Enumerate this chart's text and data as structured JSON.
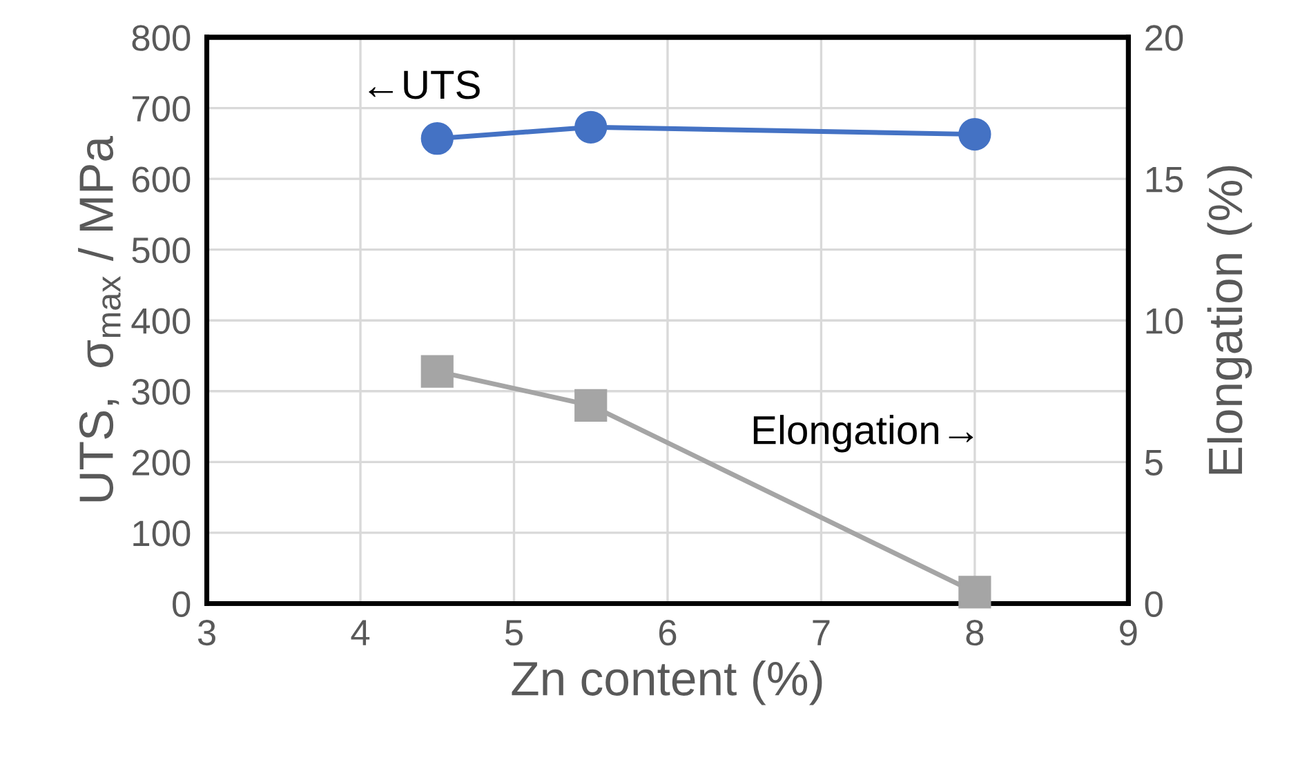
{
  "chart_data": {
    "type": "line",
    "xlabel": "Zn content (%)",
    "ylabel": "UTS,  σ$_{max}$ / MPa",
    "y2label": "Elongation (%)",
    "x": [
      4.5,
      5.5,
      8
    ],
    "series": [
      {
        "color": "#4472c4",
        "marker": "circle",
        "values": [
          657,
          673,
          663
        ]
      },
      {
        "color": "#a5a5a5",
        "marker": "square",
        "axis": "y2",
        "values": [
          8.2,
          7.0,
          0.4
        ]
      }
    ],
    "xlim": [
      3,
      9
    ],
    "xticks": [
      3,
      4,
      5,
      6,
      7,
      8,
      9
    ],
    "ylim": [
      0,
      800
    ],
    "yticks": [
      0,
      100,
      200,
      300,
      400,
      500,
      600,
      700,
      800
    ],
    "y2lim": [
      0,
      20
    ],
    "y2ticks": [
      0,
      5,
      10,
      15,
      20
    ],
    "grid": true,
    "annotations": [
      "←UTS",
      "Elongation→"
    ]
  }
}
